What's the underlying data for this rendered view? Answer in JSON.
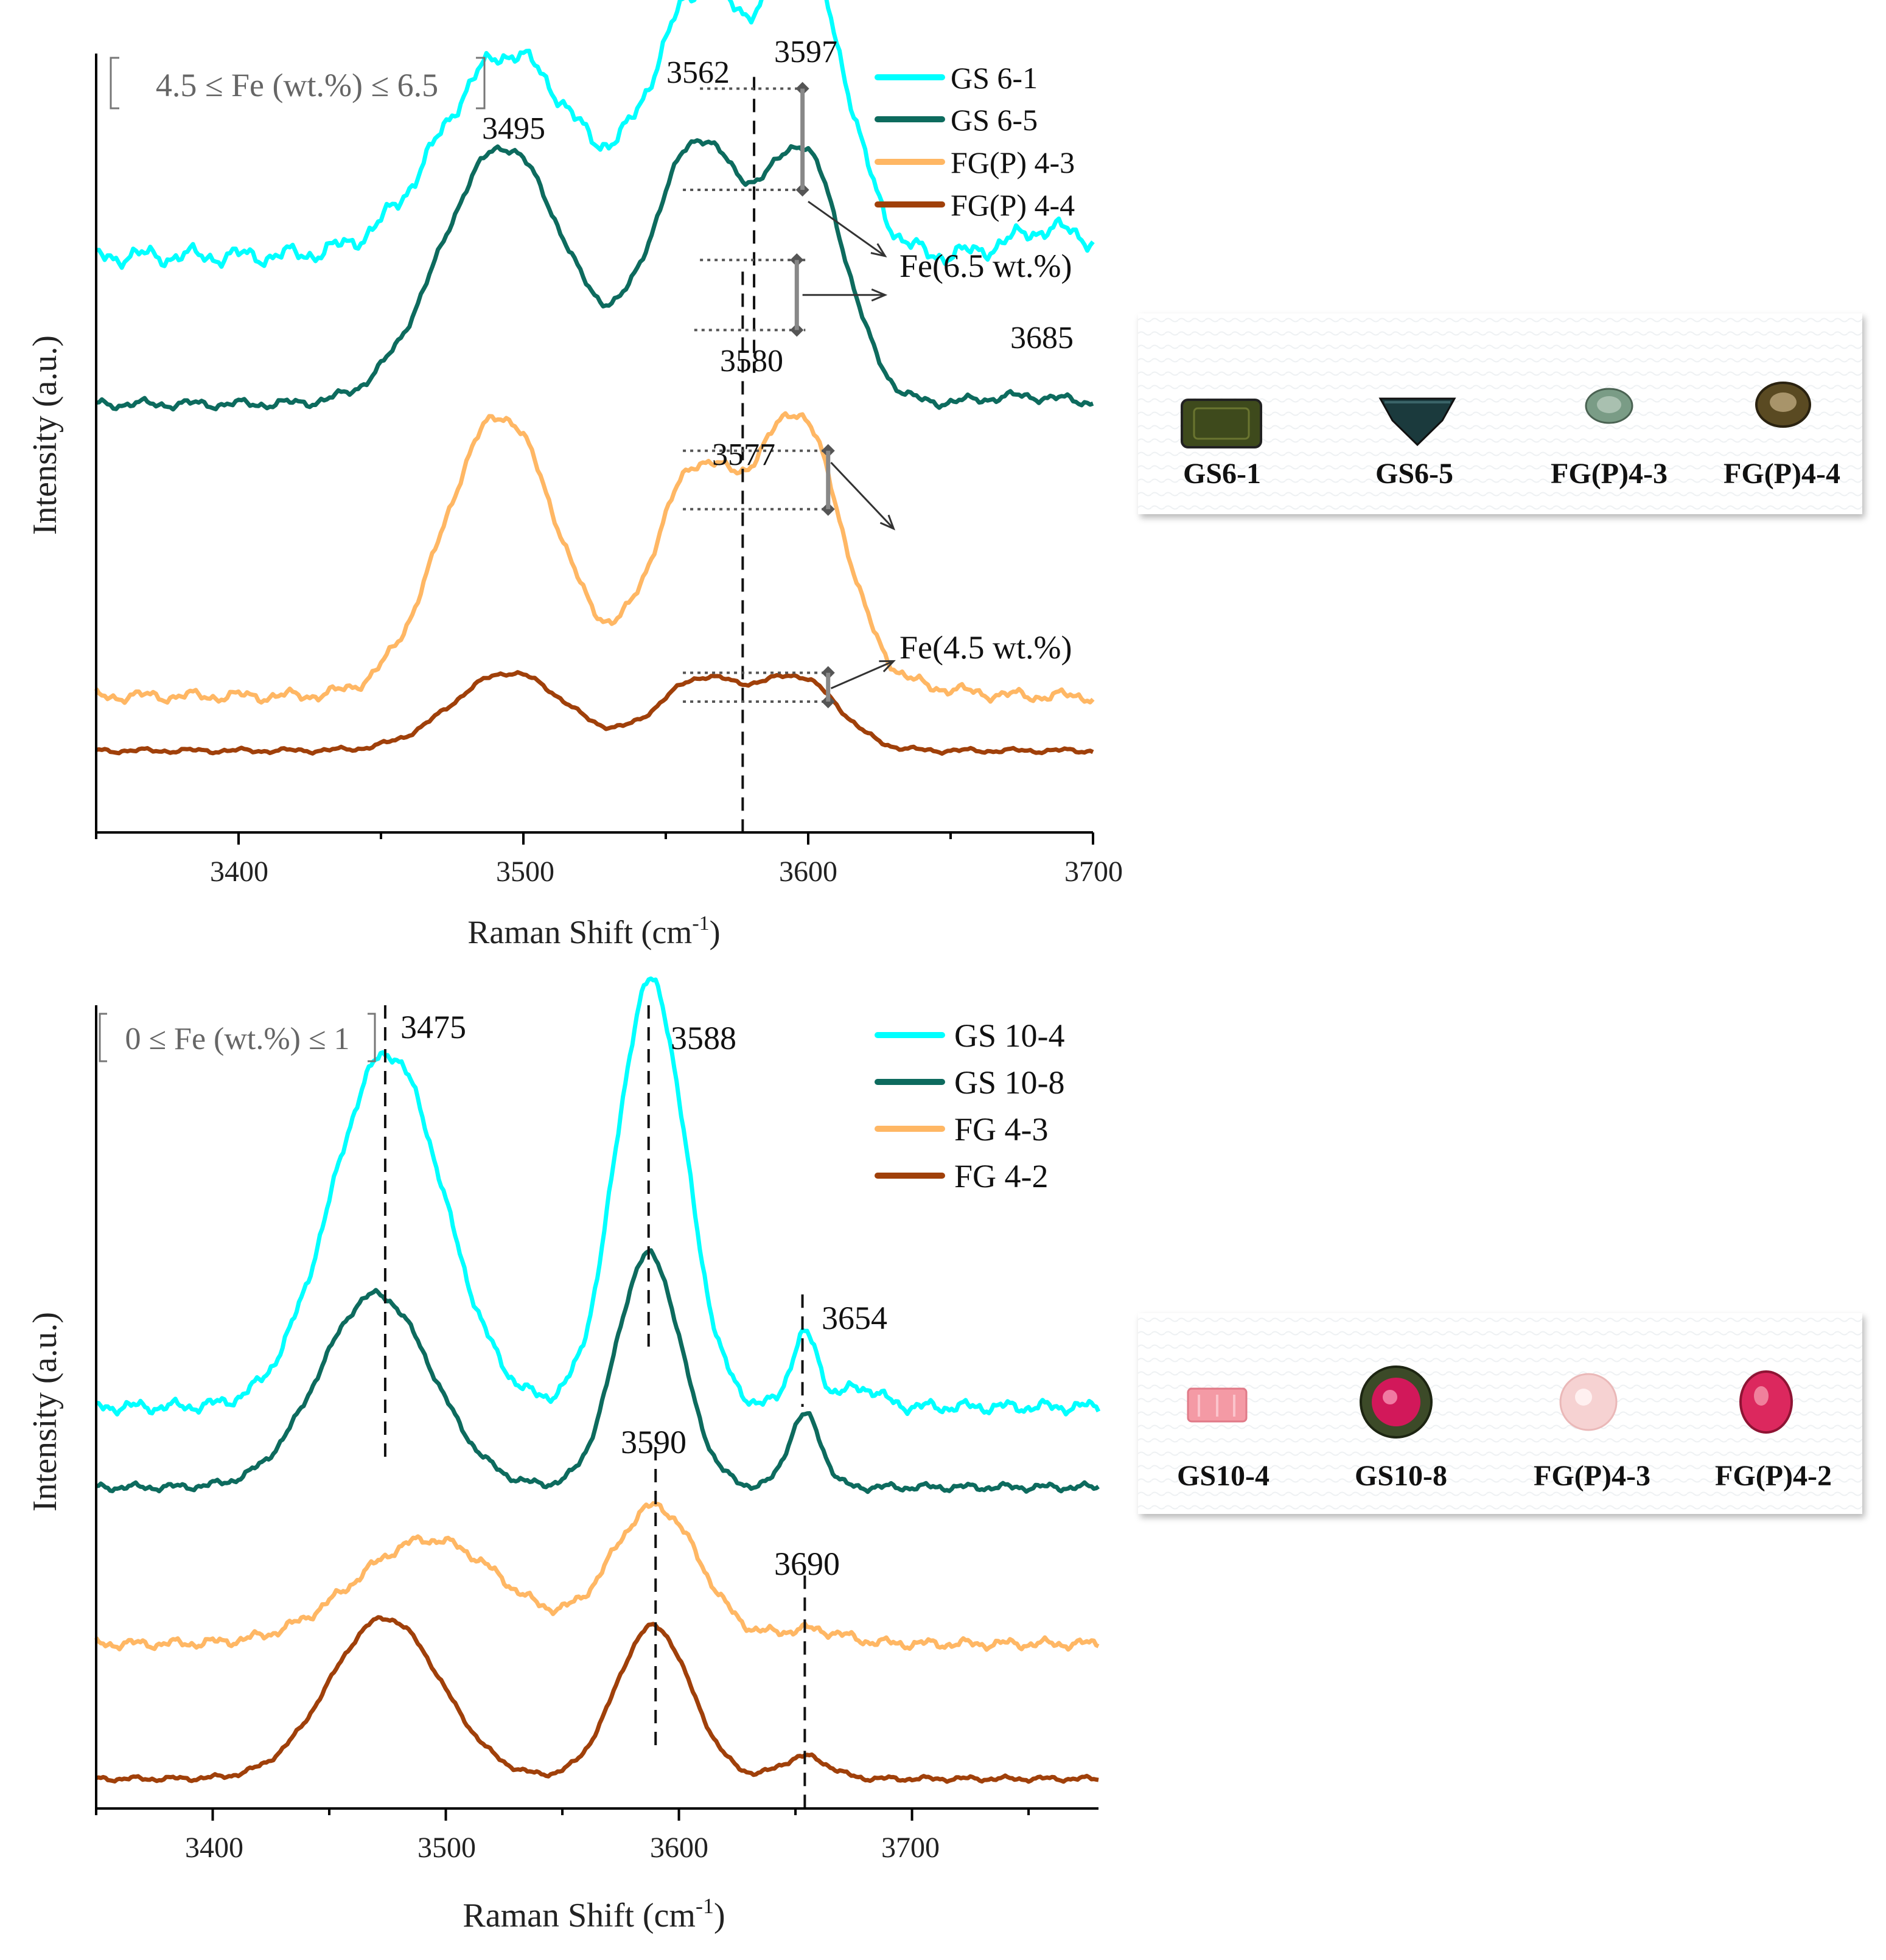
{
  "chart_data": [
    {
      "type": "line",
      "title": "",
      "range_label": "4.5 ≤ Fe (wt.%) ≤ 6.5",
      "xlabel": "Raman Shift (cm",
      "xlabel_sup": "-1",
      "xlabel_tail": ")",
      "ylabel": "Intensity (a.u.)",
      "xlim": [
        3350,
        3700
      ],
      "xticks": [
        "3400",
        "3500",
        "3600",
        "3700"
      ],
      "ylim": [
        0,
        1
      ],
      "series": [
        {
          "name": "GS 6-1",
          "color": "#00ffff",
          "offset": 0.74,
          "noise": 0.008,
          "peaks": [
            [
              3495,
              0.26,
              24
            ],
            [
              3562,
              0.33,
              17
            ],
            [
              3600,
              0.35,
              14
            ],
            [
              3685,
              0.035,
              14
            ]
          ]
        },
        {
          "name": "GS 6-5",
          "color": "#0d6b5e",
          "offset": 0.55,
          "noise": 0.004,
          "peaks": [
            [
              3493,
              0.33,
              22
            ],
            [
              3561,
              0.33,
              16
            ],
            [
              3599,
              0.31,
              14
            ],
            [
              3675,
              0.01,
              15
            ]
          ]
        },
        {
          "name": "FG(P) 4-3",
          "color": "#ffb764",
          "offset": 0.175,
          "noise": 0.005,
          "peaks": [
            [
              3492,
              0.36,
              20
            ],
            [
              3560,
              0.28,
              15
            ],
            [
              3597,
              0.35,
              15
            ],
            [
              3640,
              0.01,
              15
            ]
          ]
        },
        {
          "name": "FG(P) 4-4",
          "color": "#a0400a",
          "offset": 0.105,
          "noise": 0.002,
          "peaks": [
            [
              3495,
              0.1,
              20
            ],
            [
              3562,
              0.09,
              15
            ],
            [
              3597,
              0.09,
              14
            ]
          ]
        }
      ],
      "peak_labels": [
        "3495",
        "3562",
        "3597",
        "3580",
        "3685",
        "3577"
      ],
      "annotations": [
        "Fe(6.5 wt.%)",
        "Fe(4.5 wt.%)"
      ]
    },
    {
      "type": "line",
      "title": "",
      "range_label": "0 ≤ Fe (wt.%) ≤ 1",
      "xlabel": "Raman Shift (cm",
      "xlabel_sup": "-1",
      "xlabel_tail": ")",
      "ylabel": "Intensity (a.u.)",
      "xlim": [
        3350,
        3780
      ],
      "xticks": [
        "3400",
        "3500",
        "3600",
        "3700"
      ],
      "ylim": [
        0,
        1
      ],
      "series": [
        {
          "name": "GS 10-4",
          "color": "#00ffff",
          "offset": 0.5,
          "noise": 0.005,
          "peaks": [
            [
              3475,
              0.44,
              24
            ],
            [
              3588,
              0.53,
              15
            ],
            [
              3654,
              0.09,
              6
            ],
            [
              3678,
              0.025,
              8
            ]
          ]
        },
        {
          "name": "GS 10-8",
          "color": "#0d6b5e",
          "offset": 0.4,
          "noise": 0.003,
          "peaks": [
            [
              3470,
              0.24,
              24
            ],
            [
              3587,
              0.29,
              14
            ],
            [
              3654,
              0.09,
              7
            ]
          ]
        },
        {
          "name": "FG 4-3",
          "color": "#ffb764",
          "offset": 0.205,
          "noise": 0.004,
          "peaks": [
            [
              3493,
              0.13,
              32
            ],
            [
              3590,
              0.17,
              19
            ],
            [
              3656,
              0.018,
              14
            ]
          ]
        },
        {
          "name": "FG 4-2",
          "color": "#a0400a",
          "offset": 0.037,
          "noise": 0.002,
          "peaks": [
            [
              3474,
              0.2,
              24
            ],
            [
              3589,
              0.19,
              16
            ],
            [
              3654,
              0.028,
              10
            ]
          ]
        }
      ],
      "peak_labels": [
        "3475",
        "3588",
        "3654",
        "3590",
        "3690"
      ],
      "annotations": []
    }
  ],
  "photos": [
    {
      "items": [
        {
          "label": "GS6-1",
          "color": "#3e4a1c",
          "shape": "rect"
        },
        {
          "label": "GS6-5",
          "color": "#1b3a3d",
          "shape": "triangle"
        },
        {
          "label": "FG(P)4-3",
          "color": "#7a9c86",
          "shape": "oval-small"
        },
        {
          "label": "FG(P)4-4",
          "color": "#5a4a22",
          "shape": "oval"
        }
      ]
    },
    {
      "items": [
        {
          "label": "GS10-4",
          "color": "#f49aa5",
          "shape": "rect"
        },
        {
          "label": "GS10-8",
          "color": "#d2185a",
          "shape": "round-rim"
        },
        {
          "label": "FG(P)4-3",
          "color": "#f6d2d2",
          "shape": "round"
        },
        {
          "label": "FG(P)4-2",
          "color": "#dc285e",
          "shape": "round-dark"
        }
      ]
    }
  ]
}
